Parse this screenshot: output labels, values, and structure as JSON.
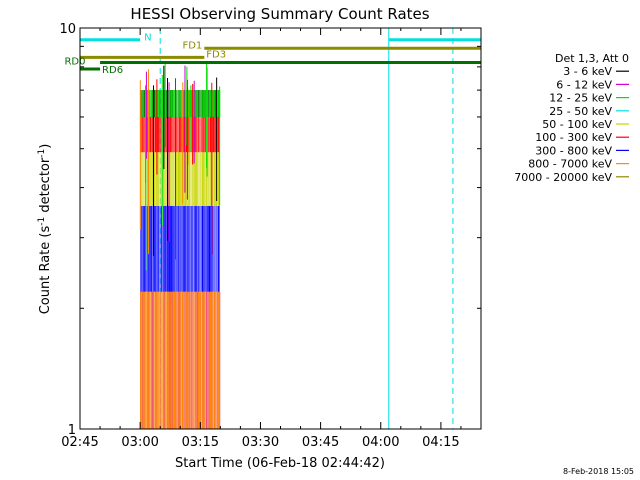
{
  "chart_data": {
    "type": "line",
    "title": "HESSI Observing Summary Count Rates",
    "xlabel": "Start Time (06-Feb-18 02:44:42)",
    "ylabel_parts": [
      "Count Rate (s",
      "-1",
      " detector",
      "-1",
      ")"
    ],
    "y_scale": "log",
    "ylim": [
      1,
      10
    ],
    "y_tick_labels": [
      {
        "value": 1,
        "label": "1"
      },
      {
        "value": 10,
        "label": "10"
      }
    ],
    "xlim": [
      "02:45",
      "04:25"
    ],
    "x_ticks": [
      "02:45",
      "03:00",
      "03:15",
      "03:30",
      "03:45",
      "04:00",
      "04:15"
    ],
    "footer_timestamp": "8-Feb-2018 15:05",
    "legend": {
      "header": "Det 1,3, Att 0",
      "entries": [
        {
          "label": "3 - 6 keV",
          "color": "#000000"
        },
        {
          "label": "6 - 12 keV",
          "color": "#d400d4"
        },
        {
          "label": "12 - 25 keV",
          "color": "#00e000"
        },
        {
          "label": "25 - 50 keV",
          "color": "#00e0e0"
        },
        {
          "label": "50 - 100 keV",
          "color": "#c8d400"
        },
        {
          "label": "100 - 300 keV",
          "color": "#ff0000"
        },
        {
          "label": "300 - 800 keV",
          "color": "#0000ff"
        },
        {
          "label": "800 - 7000 keV",
          "color": "#ff8c00"
        },
        {
          "label": "7000 - 20000 keV",
          "color": "#8b8b00"
        }
      ]
    },
    "noisy_data_window": {
      "start": "03:00",
      "end": "03:20"
    },
    "band_ranges": [
      {
        "band": "6 - 12 keV",
        "y_range": [
          1,
          2.2
        ],
        "color": "#d400d4"
      },
      {
        "band": "800 - 7000 keV",
        "y_range": [
          1,
          2.2
        ],
        "color": "#ff8c00"
      },
      {
        "band": "300 - 800 keV",
        "y_range": [
          2.2,
          3.6
        ],
        "color": "#0000ff"
      },
      {
        "band": "50 - 100 keV",
        "y_range": [
          3.6,
          4.9
        ],
        "color": "#c8d400"
      },
      {
        "band": "100 - 300 keV",
        "y_range": [
          4.9,
          6.0
        ],
        "color": "#ff0000"
      },
      {
        "band": "3 - 6 keV",
        "y_range": [
          6.0,
          7.0
        ],
        "color": "#000000"
      },
      {
        "band": "12 - 25 keV",
        "y_range": [
          6.0,
          7.0
        ],
        "color": "#00e000"
      }
    ],
    "flag_bars": [
      {
        "label": "N",
        "start": "02:45",
        "end": "03:00",
        "y": 9.35,
        "color": "#00e0e0"
      },
      {
        "label": "",
        "start": "04:02",
        "end": "04:25",
        "y": 9.35,
        "color": "#00e0e0"
      },
      {
        "label": "FD1",
        "start": "03:16",
        "end": "04:25",
        "y": 8.9,
        "color": "#8b8b00"
      },
      {
        "label": "FD3",
        "start": "02:45",
        "end": "03:16",
        "y": 8.45,
        "color": "#8b8b00"
      },
      {
        "label": "RD0",
        "start": "02:50",
        "end": "04:25",
        "y": 8.2,
        "color": "#007000"
      },
      {
        "label": "RD6",
        "start": "02:45",
        "end": "02:50",
        "y": 7.9,
        "color": "#007000"
      }
    ],
    "vertical_markers": [
      {
        "time": "02:45",
        "style": "solid",
        "color": "#00e0e0"
      },
      {
        "time": "03:05",
        "style": "dashed",
        "color": "#00e0e0"
      },
      {
        "time": "04:02",
        "style": "solid",
        "color": "#00e0e0"
      },
      {
        "time": "04:18",
        "style": "dashed",
        "color": "#00e0e0"
      }
    ]
  }
}
